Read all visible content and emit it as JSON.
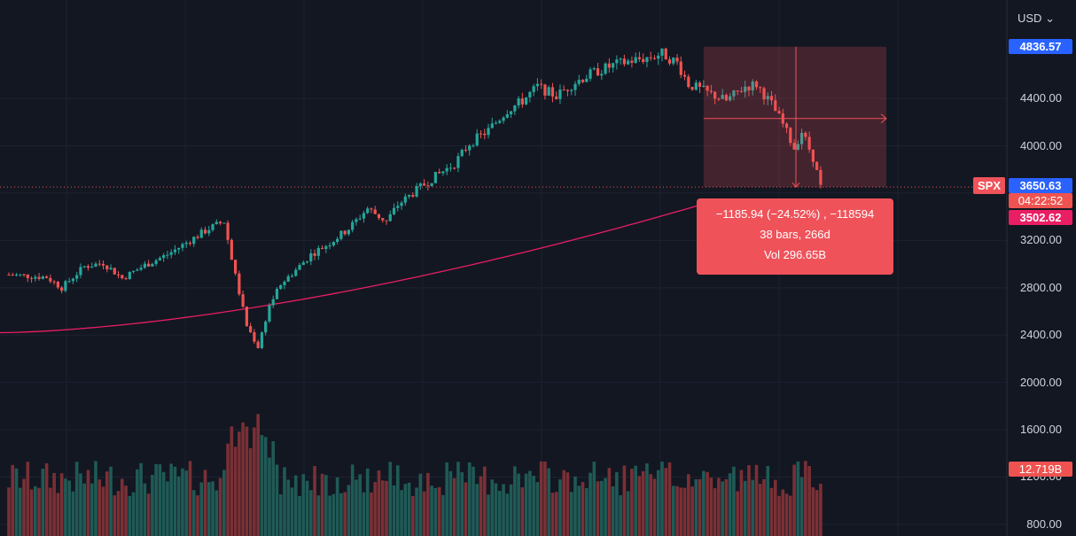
{
  "currency": "USD",
  "symbol": "SPX",
  "price_tags": {
    "max": "4836.57",
    "last": "3650.63",
    "countdown": "04:22:52",
    "ma": "3502.62",
    "volume": "12.719B"
  },
  "colors": {
    "background": "#131722",
    "up": "#26a69a",
    "down": "#ef5350",
    "ma_line": "#e91e63",
    "measure": "#f0525a",
    "max_tag": "#2962ff",
    "last_tag": "#2962ff",
    "ma_tag": "#e91e63"
  },
  "measure": {
    "line1": "−1185.94 (−24.52%) , −118594",
    "line2": "38 bars, 266d",
    "line3": "Vol 296.65B"
  },
  "chart_data": {
    "type": "candlestick",
    "y_ticks": [
      "4400.00",
      "4000.00",
      "3200.00",
      "2800.00",
      "2400.00",
      "2000.00",
      "1600.00",
      "1200.00",
      "800.00"
    ],
    "ylim": [
      800,
      5200
    ],
    "grid": true,
    "series": [
      {
        "name": "SPX",
        "kind": "candles",
        "points": 119,
        "last_close": 3650.63,
        "high": 4836.57
      },
      {
        "name": "MA",
        "kind": "line",
        "last": 3502.62
      },
      {
        "name": "Volume",
        "kind": "bars",
        "last": "12.719B"
      }
    ],
    "close_path": [
      [
        0,
        2910
      ],
      [
        10,
        2890
      ],
      [
        14,
        2800
      ],
      [
        20,
        2980
      ],
      [
        25,
        3010
      ],
      [
        30,
        2880
      ],
      [
        36,
        2990
      ],
      [
        42,
        3080
      ],
      [
        48,
        3200
      ],
      [
        53,
        3300
      ],
      [
        57,
        3360
      ],
      [
        60,
        2900
      ],
      [
        63,
        2480
      ],
      [
        66,
        2300
      ],
      [
        69,
        2650
      ],
      [
        72,
        2830
      ],
      [
        76,
        2950
      ],
      [
        80,
        3080
      ],
      [
        85,
        3180
      ],
      [
        90,
        3300
      ],
      [
        95,
        3470
      ],
      [
        100,
        3360
      ],
      [
        103,
        3500
      ],
      [
        107,
        3600
      ],
      [
        112,
        3720
      ],
      [
        118,
        3850
      ],
      [
        122,
        4020
      ],
      [
        127,
        4130
      ],
      [
        132,
        4300
      ],
      [
        136,
        4380
      ],
      [
        140,
        4500
      ],
      [
        145,
        4420
      ],
      [
        150,
        4540
      ],
      [
        155,
        4620
      ],
      [
        160,
        4680
      ],
      [
        165,
        4720
      ],
      [
        170,
        4750
      ],
      [
        173,
        4780
      ],
      [
        177,
        4700
      ],
      [
        180,
        4520
      ],
      [
        185,
        4450
      ],
      [
        190,
        4380
      ],
      [
        195,
        4500
      ],
      [
        198,
        4520
      ],
      [
        202,
        4350
      ],
      [
        205,
        4180
      ],
      [
        208,
        3980
      ],
      [
        210,
        4120
      ],
      [
        213,
        3900
      ],
      [
        215,
        3650
      ]
    ]
  }
}
